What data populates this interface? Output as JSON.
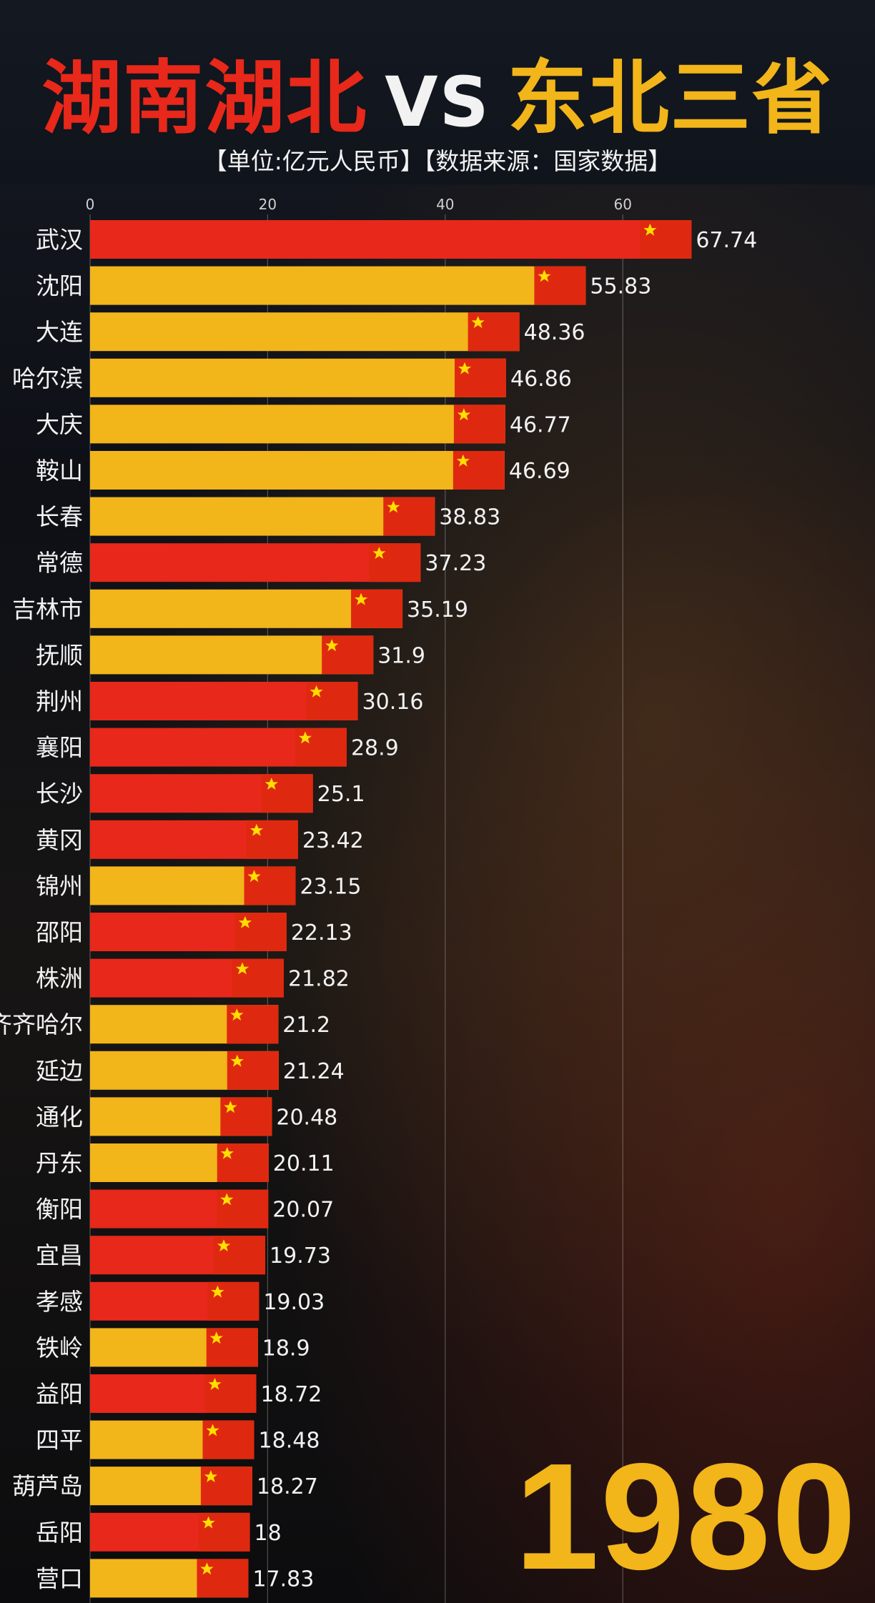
{
  "header": {
    "title_left": "湖南湖北",
    "title_vs": "VS",
    "title_right": "东北三省",
    "subtitle": "【单位:亿元人民币】【数据来源：国家数据】"
  },
  "year": "1980",
  "colors": {
    "hunan_hubei": "#e8281a",
    "northeast": "#f2b51a",
    "label_text": "#f2f2f2",
    "axis_text": "#d0d0d0"
  },
  "chart_data": {
    "type": "bar",
    "orientation": "horizontal",
    "xlim": [
      0,
      68
    ],
    "x_ticks": [
      0,
      20,
      40,
      60
    ],
    "grid": true,
    "unit": "亿元人民币",
    "categories": [
      "武汉",
      "沈阳",
      "大连",
      "哈尔滨",
      "大庆",
      "鞍山",
      "长春",
      "常德",
      "吉林市",
      "抚顺",
      "荆州",
      "襄阳",
      "长沙",
      "黄冈",
      "锦州",
      "邵阳",
      "株洲",
      "齐齐哈尔",
      "延边",
      "通化",
      "丹东",
      "衡阳",
      "宜昌",
      "孝感",
      "铁岭",
      "益阳",
      "四平",
      "葫芦岛",
      "岳阳",
      "营口"
    ],
    "values": [
      67.74,
      55.83,
      48.36,
      46.86,
      46.77,
      46.69,
      38.83,
      37.23,
      35.19,
      31.9,
      30.16,
      28.9,
      25.1,
      23.42,
      23.15,
      22.13,
      21.82,
      21.2,
      21.24,
      20.48,
      20.11,
      20.07,
      19.73,
      19.03,
      18.9,
      18.72,
      18.48,
      18.27,
      18,
      17.83
    ],
    "value_labels": [
      "67.74",
      "55.83",
      "48.36",
      "46.86",
      "46.77",
      "46.69",
      "38.83",
      "37.23",
      "35.19",
      "31.9",
      "30.16",
      "28.9",
      "25.1",
      "23.42",
      "23.15",
      "22.13",
      "21.82",
      "21.2",
      "21.24",
      "20.48",
      "20.11",
      "20.07",
      "19.73",
      "19.03",
      "18.9",
      "18.72",
      "18.48",
      "18.27",
      "18",
      "17.83"
    ],
    "groups": [
      "hunan_hubei",
      "northeast",
      "northeast",
      "northeast",
      "northeast",
      "northeast",
      "northeast",
      "hunan_hubei",
      "northeast",
      "northeast",
      "hunan_hubei",
      "hunan_hubei",
      "hunan_hubei",
      "hunan_hubei",
      "northeast",
      "hunan_hubei",
      "hunan_hubei",
      "northeast",
      "northeast",
      "northeast",
      "northeast",
      "hunan_hubei",
      "hunan_hubei",
      "hunan_hubei",
      "northeast",
      "hunan_hubei",
      "northeast",
      "northeast",
      "hunan_hubei",
      "northeast"
    ]
  }
}
